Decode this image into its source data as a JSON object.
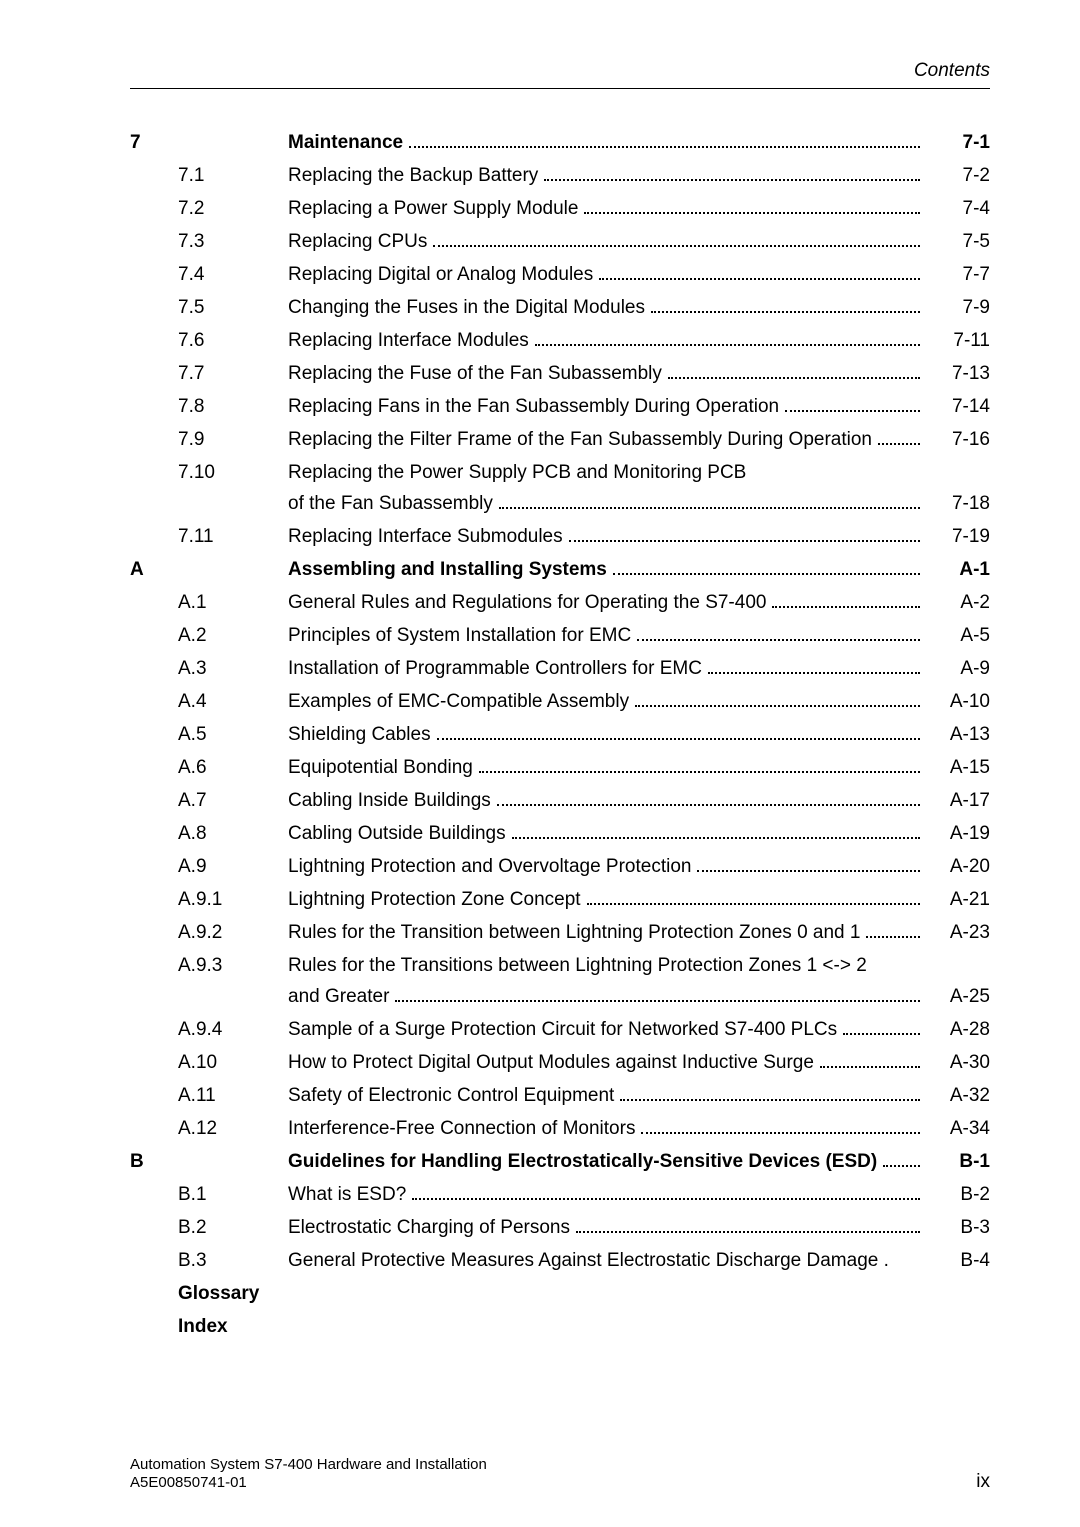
{
  "running_head": "Contents",
  "chapters": [
    {
      "num": "7",
      "title": "Maintenance",
      "page": "7-1",
      "bold": true,
      "sections": [
        {
          "num": "7.1",
          "title": "Replacing the Backup Battery",
          "page": "7-2"
        },
        {
          "num": "7.2",
          "title": "Replacing a Power Supply Module",
          "page": "7-4"
        },
        {
          "num": "7.3",
          "title": "Replacing CPUs",
          "page": "7-5"
        },
        {
          "num": "7.4",
          "title": "Replacing Digital or Analog Modules",
          "page": "7-7"
        },
        {
          "num": "7.5",
          "title": "Changing the Fuses in the Digital Modules",
          "page": "7-9"
        },
        {
          "num": "7.6",
          "title": "Replacing Interface Modules",
          "page": "7-11"
        },
        {
          "num": "7.7",
          "title": "Replacing the Fuse of the Fan Subassembly",
          "page": "7-13"
        },
        {
          "num": "7.8",
          "title": "Replacing Fans in the Fan Subassembly During Operation",
          "page": "7-14"
        },
        {
          "num": "7.9",
          "title": "Replacing the Filter Frame of the Fan Subassembly During Operation",
          "page": "7-16"
        },
        {
          "num": "7.10",
          "title": "Replacing the Power Supply PCB and Monitoring PCB",
          "cont": "of the Fan Subassembly",
          "page": "7-18"
        },
        {
          "num": "7.11",
          "title": "Replacing Interface Submodules",
          "page": "7-19"
        }
      ]
    },
    {
      "num": "A",
      "title": "Assembling and Installing Systems",
      "page": "A-1",
      "bold": true,
      "sections": [
        {
          "num": "A.1",
          "title": "General Rules and Regulations for Operating the S7-400",
          "page": "A-2"
        },
        {
          "num": "A.2",
          "title": "Principles of System Installation for EMC",
          "page": "A-5"
        },
        {
          "num": "A.3",
          "title": "Installation of Programmable Controllers for EMC",
          "page": "A-9"
        },
        {
          "num": "A.4",
          "title": "Examples of EMC-Compatible Assembly",
          "page": "A-10"
        },
        {
          "num": "A.5",
          "title": "Shielding Cables",
          "page": "A-13"
        },
        {
          "num": "A.6",
          "title": "Equipotential Bonding",
          "page": "A-15"
        },
        {
          "num": "A.7",
          "title": "Cabling Inside Buildings",
          "page": "A-17"
        },
        {
          "num": "A.8",
          "title": "Cabling Outside Buildings",
          "page": "A-19"
        },
        {
          "num": "A.9",
          "title": "Lightning Protection and Overvoltage Protection",
          "page": "A-20"
        },
        {
          "num": "A.9.1",
          "title": "Lightning Protection Zone Concept",
          "page": "A-21"
        },
        {
          "num": "A.9.2",
          "title": "Rules for the Transition between Lightning Protection Zones 0 and 1",
          "page": "A-23"
        },
        {
          "num": "A.9.3",
          "title": "Rules for the Transitions between Lightning Protection Zones 1 <-> 2",
          "cont": "and Greater",
          "page": "A-25"
        },
        {
          "num": "A.9.4",
          "title": "Sample of a Surge Protection Circuit for Networked S7-400 PLCs",
          "page": "A-28"
        },
        {
          "num": "A.10",
          "title": "How to Protect Digital Output Modules against Inductive Surge",
          "page": "A-30"
        },
        {
          "num": "A.11",
          "title": "Safety of Electronic Control Equipment",
          "page": "A-32"
        },
        {
          "num": "A.12",
          "title": "Interference-Free Connection of Monitors",
          "page": "A-34"
        }
      ]
    },
    {
      "num": "B",
      "title": "Guidelines for Handling Electrostatically-Sensitive Devices (ESD)",
      "page": "B-1",
      "bold": true,
      "sections": [
        {
          "num": "B.1",
          "title": "What is ESD?",
          "page": "B-2"
        },
        {
          "num": "B.2",
          "title": "Electrostatic Charging of Persons",
          "page": "B-3"
        },
        {
          "num": "B.3",
          "title": "General Protective Measures Against Electrostatic Discharge Damage .",
          "page": "B-4",
          "no_leader": true
        }
      ]
    }
  ],
  "trailing": [
    {
      "label": "Glossary",
      "bold": true
    },
    {
      "label": "Index",
      "bold": true
    }
  ],
  "footer": {
    "line1": "Automation System S7-400  Hardware and Installation",
    "line2": "A5E00850741-01",
    "pagenum": "ix"
  }
}
